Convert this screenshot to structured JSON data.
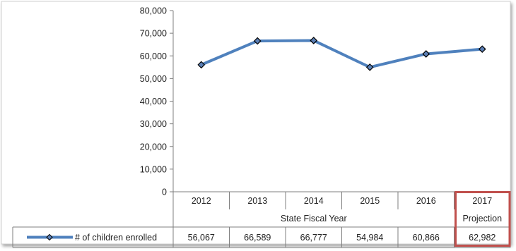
{
  "chart_data": {
    "type": "line",
    "categories": [
      [
        "2012"
      ],
      [
        "2013"
      ],
      [
        "2014"
      ],
      [
        "2015"
      ],
      [
        "2016"
      ],
      [
        "2017",
        "Projection"
      ]
    ],
    "xlabel": "State Fiscal Year",
    "ylabel": "",
    "title": "",
    "ylim": [
      0,
      80000
    ],
    "yticks": [
      "0",
      "10,000",
      "20,000",
      "30,000",
      "40,000",
      "50,000",
      "60,000",
      "70,000",
      "80,000"
    ],
    "grid": false,
    "legend": "bottom-left (data table row)",
    "series": [
      {
        "name": "# of children enrolled",
        "values": [
          56067,
          66589,
          66777,
          54984,
          60866,
          62982
        ],
        "value_labels": [
          "56,067",
          "66,589",
          "66,777",
          "54,984",
          "60,866",
          "62,982"
        ],
        "color": "#4f81bd",
        "marker": "diamond",
        "marker_fill": "#5b7fb5"
      }
    ],
    "highlight": {
      "category_index": 5,
      "color": "#c0504d"
    }
  }
}
